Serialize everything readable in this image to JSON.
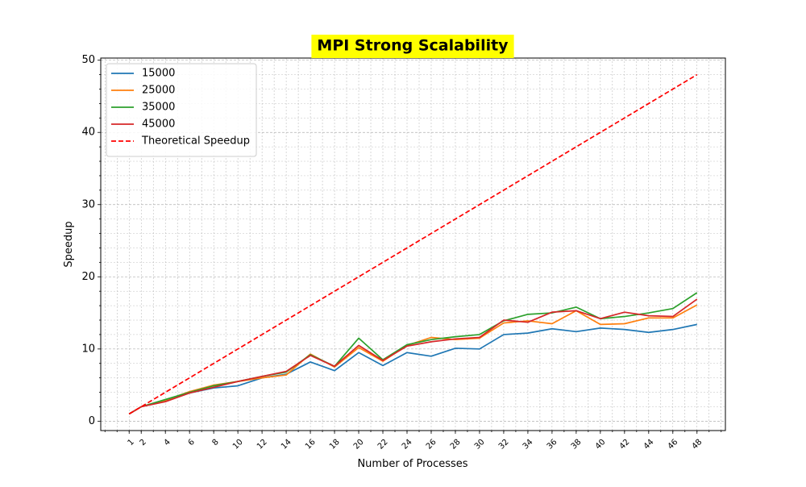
{
  "chart_data": {
    "type": "line",
    "title": "MPI Strong Scalability",
    "xlabel": "Number of Processes",
    "ylabel": "Speedup",
    "x": [
      1,
      2,
      4,
      6,
      8,
      10,
      12,
      14,
      16,
      18,
      20,
      22,
      24,
      26,
      28,
      30,
      32,
      34,
      36,
      38,
      40,
      42,
      44,
      46,
      48
    ],
    "x_ticks": [
      1,
      2,
      4,
      6,
      8,
      10,
      12,
      14,
      16,
      18,
      20,
      22,
      24,
      26,
      28,
      30,
      32,
      34,
      36,
      38,
      40,
      42,
      44,
      46,
      48
    ],
    "y_ticks": [
      0,
      10,
      20,
      30,
      40,
      50
    ],
    "xlim": [
      -1.35,
      50.35
    ],
    "ylim": [
      -1.3,
      50.3
    ],
    "grid": true,
    "legend_position": "top-left",
    "colors": {
      "title_highlight": "#ffff00",
      "grid": "#b0b0b0",
      "axes": "#000000"
    },
    "series": [
      {
        "name": "15000",
        "color": "#1f77b4",
        "style": "solid",
        "values": [
          1.0,
          2.0,
          2.8,
          3.9,
          4.6,
          4.9,
          6.0,
          6.5,
          8.2,
          7.0,
          9.5,
          7.7,
          9.5,
          9.0,
          10.1,
          10.0,
          12.0,
          12.2,
          12.8,
          12.4,
          12.9,
          12.7,
          12.3,
          12.7,
          13.4
        ]
      },
      {
        "name": "25000",
        "color": "#ff7f0e",
        "style": "solid",
        "values": [
          1.0,
          2.0,
          2.9,
          4.1,
          5.0,
          5.5,
          6.0,
          6.4,
          9.3,
          7.5,
          10.2,
          8.3,
          10.5,
          11.6,
          11.3,
          11.5,
          13.6,
          13.9,
          13.5,
          15.3,
          13.4,
          13.5,
          14.3,
          14.3,
          16.1
        ]
      },
      {
        "name": "35000",
        "color": "#2ca02c",
        "style": "solid",
        "values": [
          1.0,
          2.0,
          3.0,
          4.0,
          4.9,
          5.5,
          6.2,
          6.8,
          9.2,
          7.6,
          11.5,
          8.5,
          10.6,
          11.3,
          11.7,
          12.0,
          13.9,
          14.8,
          15.0,
          15.8,
          14.2,
          14.5,
          15.0,
          15.6,
          17.8
        ]
      },
      {
        "name": "45000",
        "color": "#d62728",
        "style": "solid",
        "values": [
          1.0,
          2.0,
          2.7,
          3.9,
          4.7,
          5.5,
          6.2,
          6.9,
          9.1,
          7.6,
          10.5,
          8.4,
          10.4,
          11.0,
          11.4,
          11.6,
          14.0,
          13.7,
          15.1,
          15.3,
          14.2,
          15.1,
          14.6,
          14.5,
          16.9
        ]
      },
      {
        "name": "Theoretical Speedup",
        "color": "#ff0000",
        "style": "dashed",
        "values": [
          1,
          2,
          4,
          6,
          8,
          10,
          12,
          14,
          16,
          18,
          20,
          22,
          24,
          26,
          28,
          30,
          32,
          34,
          36,
          38,
          40,
          42,
          44,
          46,
          48
        ]
      }
    ]
  }
}
